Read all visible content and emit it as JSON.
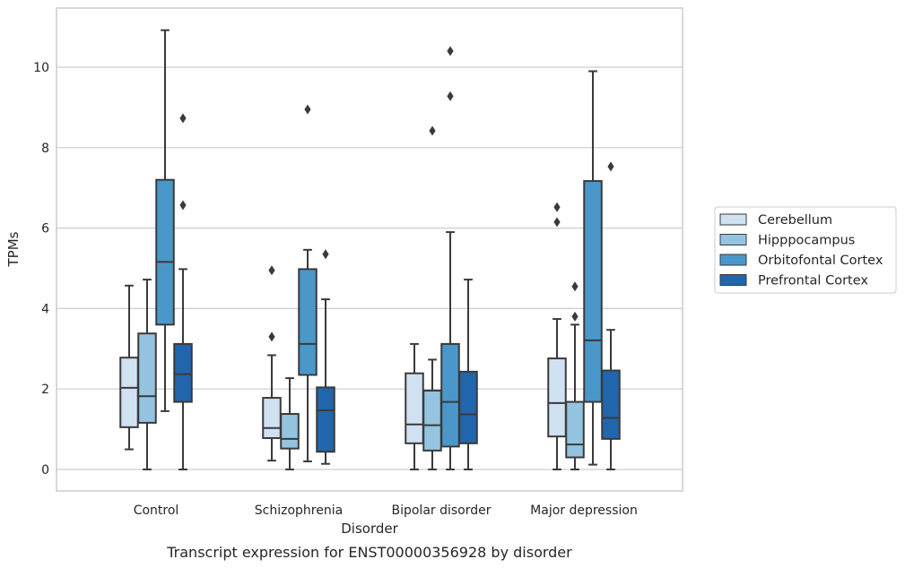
{
  "chart_data": {
    "type": "box",
    "xlabel": "Disorder",
    "ylabel": "TPMs",
    "caption": "Transcript expression for ENST00000356928 by disorder",
    "ylim": [
      -0.5,
      11.5
    ],
    "yticks": [
      "0",
      "2",
      "4",
      "6",
      "8",
      "10"
    ],
    "grid": "horizontal",
    "legend_position": "right-center",
    "categories": [
      "Control",
      "Schizophrenia",
      "Bipolar disorder",
      "Major depression"
    ],
    "series": [
      {
        "name": "Cerebellum",
        "color": "#d0e1f2",
        "boxes": [
          {
            "whislo": 0.5,
            "q1": 1.05,
            "med": 2.03,
            "q3": 2.78,
            "whishi": 4.57,
            "fliers": []
          },
          {
            "whislo": 0.22,
            "q1": 0.78,
            "med": 1.03,
            "q3": 1.78,
            "whishi": 2.84,
            "fliers": [
              3.3,
              4.95
            ]
          },
          {
            "whislo": 0.0,
            "q1": 0.65,
            "med": 1.12,
            "q3": 2.39,
            "whishi": 3.12,
            "fliers": []
          },
          {
            "whislo": 0.0,
            "q1": 0.82,
            "med": 1.65,
            "q3": 2.76,
            "whishi": 3.74,
            "fliers": [
              6.15,
              6.52
            ]
          }
        ]
      },
      {
        "name": "Hipppocampus",
        "color": "#94c4df",
        "boxes": [
          {
            "whislo": 0.0,
            "q1": 1.16,
            "med": 1.82,
            "q3": 3.38,
            "whishi": 4.72,
            "fliers": []
          },
          {
            "whislo": 0.0,
            "q1": 0.52,
            "med": 0.76,
            "q3": 1.38,
            "whishi": 2.27,
            "fliers": []
          },
          {
            "whislo": 0.0,
            "q1": 0.47,
            "med": 1.1,
            "q3": 1.96,
            "whishi": 2.73,
            "fliers": [
              8.42
            ]
          },
          {
            "whislo": 0.0,
            "q1": 0.3,
            "med": 0.62,
            "q3": 1.68,
            "whishi": 3.6,
            "fliers": [
              3.8,
              4.55
            ]
          }
        ]
      },
      {
        "name": "Orbitofontal Cortex",
        "color": "#4a98c9",
        "boxes": [
          {
            "whislo": 1.45,
            "q1": 3.6,
            "med": 5.16,
            "q3": 7.2,
            "whishi": 10.92,
            "fliers": []
          },
          {
            "whislo": 0.2,
            "q1": 2.35,
            "med": 3.12,
            "q3": 4.98,
            "whishi": 5.46,
            "fliers": [
              8.95
            ]
          },
          {
            "whislo": 0.0,
            "q1": 0.57,
            "med": 1.68,
            "q3": 3.12,
            "whishi": 5.9,
            "fliers": [
              9.28,
              10.4
            ]
          },
          {
            "whislo": 0.12,
            "q1": 1.68,
            "med": 3.21,
            "q3": 7.17,
            "whishi": 9.9,
            "fliers": []
          }
        ]
      },
      {
        "name": "Prefrontal Cortex",
        "color": "#2166ac",
        "boxes": [
          {
            "whislo": 0.0,
            "q1": 1.68,
            "med": 2.37,
            "q3": 3.12,
            "whishi": 4.98,
            "fliers": [
              6.57,
              8.73
            ]
          },
          {
            "whislo": 0.14,
            "q1": 0.44,
            "med": 1.47,
            "q3": 2.04,
            "whishi": 4.23,
            "fliers": [
              5.35
            ]
          },
          {
            "whislo": 0.0,
            "q1": 0.65,
            "med": 1.37,
            "q3": 2.43,
            "whishi": 4.72,
            "fliers": []
          },
          {
            "whislo": 0.0,
            "q1": 0.76,
            "med": 1.28,
            "q3": 2.46,
            "whishi": 3.47,
            "fliers": [
              7.53
            ]
          }
        ]
      }
    ]
  }
}
